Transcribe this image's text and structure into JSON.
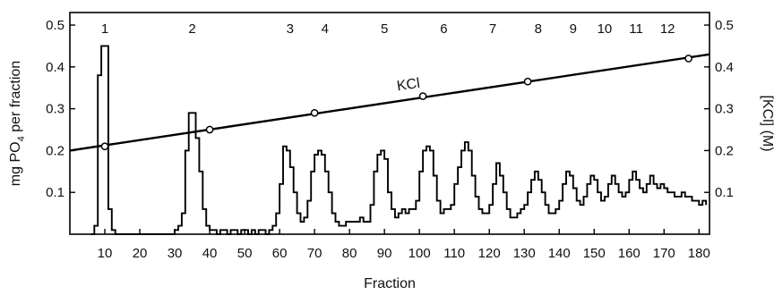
{
  "chart_data": {
    "type": "line",
    "xlabel": "Fraction",
    "ylabel_left_main": "mg PO",
    "ylabel_left_sub": "4",
    "ylabel_left_rest": " per fraction",
    "ylabel_right": "[KCl] (M)",
    "xlim": [
      0,
      183
    ],
    "ylim": [
      0,
      0.53
    ],
    "x_ticks": [
      10,
      20,
      30,
      40,
      50,
      60,
      70,
      80,
      90,
      100,
      110,
      120,
      130,
      140,
      150,
      160,
      170,
      180
    ],
    "y_ticks": [
      0.1,
      0.2,
      0.3,
      0.4,
      0.5
    ],
    "y_tick_labels": [
      "0.1",
      "0.2",
      "0.3",
      "0.4",
      "0.5"
    ],
    "peak_labels": [
      {
        "text": "1",
        "x": 10
      },
      {
        "text": "2",
        "x": 35
      },
      {
        "text": "3",
        "x": 63
      },
      {
        "text": "4",
        "x": 73
      },
      {
        "text": "5",
        "x": 90
      },
      {
        "text": "6",
        "x": 107
      },
      {
        "text": "7",
        "x": 121
      },
      {
        "text": "8",
        "x": 134
      },
      {
        "text": "9",
        "x": 144
      },
      {
        "text": "10",
        "x": 153
      },
      {
        "text": "11",
        "x": 162
      },
      {
        "text": "12",
        "x": 171
      }
    ],
    "series": [
      {
        "name": "mg PO4",
        "style": "step",
        "points": [
          [
            6,
            0
          ],
          [
            7,
            0.02
          ],
          [
            8,
            0.38
          ],
          [
            9,
            0.45
          ],
          [
            10,
            0.45
          ],
          [
            11,
            0.06
          ],
          [
            12,
            0.01
          ],
          [
            13,
            0
          ],
          [
            14,
            0
          ],
          [
            28,
            0
          ],
          [
            30,
            0.01
          ],
          [
            31,
            0.02
          ],
          [
            32,
            0.05
          ],
          [
            33,
            0.2
          ],
          [
            34,
            0.29
          ],
          [
            35,
            0.29
          ],
          [
            36,
            0.23
          ],
          [
            37,
            0.15
          ],
          [
            38,
            0.06
          ],
          [
            39,
            0.02
          ],
          [
            40,
            0.01
          ],
          [
            41,
            0.01
          ],
          [
            42,
            0
          ],
          [
            43,
            0.01
          ],
          [
            44,
            0.01
          ],
          [
            45,
            0
          ],
          [
            46,
            0.01
          ],
          [
            47,
            0.01
          ],
          [
            48,
            0
          ],
          [
            49,
            0.01
          ],
          [
            50,
            0.01
          ],
          [
            51,
            0
          ],
          [
            52,
            0.01
          ],
          [
            53,
            0
          ],
          [
            54,
            0.01
          ],
          [
            55,
            0.01
          ],
          [
            56,
            0
          ],
          [
            57,
            0.01
          ],
          [
            58,
            0.02
          ],
          [
            59,
            0.05
          ],
          [
            60,
            0.12
          ],
          [
            61,
            0.21
          ],
          [
            62,
            0.2
          ],
          [
            63,
            0.16
          ],
          [
            64,
            0.1
          ],
          [
            65,
            0.05
          ],
          [
            66,
            0.03
          ],
          [
            67,
            0.04
          ],
          [
            68,
            0.08
          ],
          [
            69,
            0.15
          ],
          [
            70,
            0.19
          ],
          [
            71,
            0.2
          ],
          [
            72,
            0.19
          ],
          [
            73,
            0.15
          ],
          [
            74,
            0.1
          ],
          [
            75,
            0.05
          ],
          [
            76,
            0.03
          ],
          [
            77,
            0.02
          ],
          [
            78,
            0.02
          ],
          [
            79,
            0.03
          ],
          [
            80,
            0.03
          ],
          [
            81,
            0.03
          ],
          [
            82,
            0.03
          ],
          [
            83,
            0.04
          ],
          [
            84,
            0.03
          ],
          [
            85,
            0.03
          ],
          [
            86,
            0.07
          ],
          [
            87,
            0.15
          ],
          [
            88,
            0.19
          ],
          [
            89,
            0.2
          ],
          [
            90,
            0.18
          ],
          [
            91,
            0.1
          ],
          [
            92,
            0.06
          ],
          [
            93,
            0.04
          ],
          [
            94,
            0.05
          ],
          [
            95,
            0.06
          ],
          [
            96,
            0.05
          ],
          [
            97,
            0.06
          ],
          [
            98,
            0.06
          ],
          [
            99,
            0.08
          ],
          [
            100,
            0.15
          ],
          [
            101,
            0.2
          ],
          [
            102,
            0.21
          ],
          [
            103,
            0.2
          ],
          [
            104,
            0.14
          ],
          [
            105,
            0.08
          ],
          [
            106,
            0.05
          ],
          [
            107,
            0.06
          ],
          [
            108,
            0.06
          ],
          [
            109,
            0.07
          ],
          [
            110,
            0.12
          ],
          [
            111,
            0.16
          ],
          [
            112,
            0.2
          ],
          [
            113,
            0.22
          ],
          [
            114,
            0.2
          ],
          [
            115,
            0.14
          ],
          [
            116,
            0.09
          ],
          [
            117,
            0.06
          ],
          [
            118,
            0.05
          ],
          [
            119,
            0.05
          ],
          [
            120,
            0.07
          ],
          [
            121,
            0.12
          ],
          [
            122,
            0.17
          ],
          [
            123,
            0.14
          ],
          [
            124,
            0.1
          ],
          [
            125,
            0.06
          ],
          [
            126,
            0.04
          ],
          [
            127,
            0.04
          ],
          [
            128,
            0.05
          ],
          [
            129,
            0.06
          ],
          [
            130,
            0.07
          ],
          [
            131,
            0.1
          ],
          [
            132,
            0.13
          ],
          [
            133,
            0.15
          ],
          [
            134,
            0.13
          ],
          [
            135,
            0.1
          ],
          [
            136,
            0.07
          ],
          [
            137,
            0.05
          ],
          [
            138,
            0.05
          ],
          [
            139,
            0.06
          ],
          [
            140,
            0.08
          ],
          [
            141,
            0.12
          ],
          [
            142,
            0.15
          ],
          [
            143,
            0.14
          ],
          [
            144,
            0.11
          ],
          [
            145,
            0.08
          ],
          [
            146,
            0.07
          ],
          [
            147,
            0.09
          ],
          [
            148,
            0.12
          ],
          [
            149,
            0.14
          ],
          [
            150,
            0.13
          ],
          [
            151,
            0.1
          ],
          [
            152,
            0.08
          ],
          [
            153,
            0.09
          ],
          [
            154,
            0.12
          ],
          [
            155,
            0.14
          ],
          [
            156,
            0.12
          ],
          [
            157,
            0.1
          ],
          [
            158,
            0.09
          ],
          [
            159,
            0.1
          ],
          [
            160,
            0.13
          ],
          [
            161,
            0.15
          ],
          [
            162,
            0.13
          ],
          [
            163,
            0.11
          ],
          [
            164,
            0.1
          ],
          [
            165,
            0.12
          ],
          [
            166,
            0.14
          ],
          [
            167,
            0.12
          ],
          [
            168,
            0.11
          ],
          [
            169,
            0.12
          ],
          [
            170,
            0.11
          ],
          [
            171,
            0.1
          ],
          [
            172,
            0.1
          ],
          [
            173,
            0.09
          ],
          [
            174,
            0.09
          ],
          [
            175,
            0.1
          ],
          [
            176,
            0.09
          ],
          [
            177,
            0.09
          ],
          [
            178,
            0.08
          ],
          [
            179,
            0.08
          ],
          [
            180,
            0.07
          ],
          [
            181,
            0.08
          ],
          [
            182,
            0.07
          ]
        ]
      },
      {
        "name": "KCl",
        "style": "line",
        "line": [
          [
            0,
            0.2
          ],
          [
            183,
            0.43
          ]
        ],
        "markers": [
          [
            10,
            0.21
          ],
          [
            40,
            0.25
          ],
          [
            70,
            0.29
          ],
          [
            101,
            0.33
          ],
          [
            131,
            0.365
          ],
          [
            177,
            0.42
          ]
        ]
      }
    ],
    "kcl_label": "KCl",
    "kcl_label_x": 97,
    "kcl_label_y": 0.33
  }
}
